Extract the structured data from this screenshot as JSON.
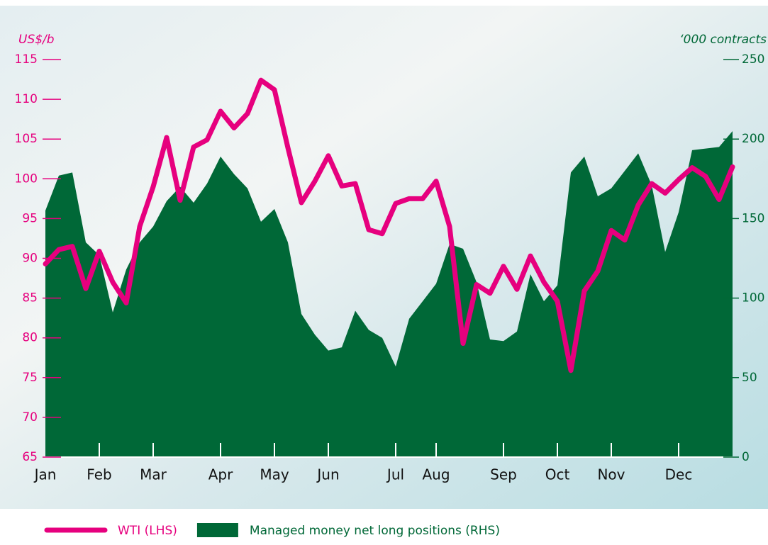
{
  "chart_data": {
    "type": "line",
    "ylabel": "US$/b",
    "y2label": "‘000 contracts",
    "categories": [
      "Jan",
      null,
      null,
      null,
      "Feb",
      null,
      null,
      null,
      "Mar",
      null,
      null,
      null,
      null,
      "Apr",
      null,
      null,
      null,
      "May",
      null,
      null,
      null,
      "Jun",
      null,
      null,
      null,
      null,
      "Jul",
      null,
      null,
      "Aug",
      null,
      null,
      null,
      null,
      "Sep",
      null,
      null,
      null,
      "Oct",
      null,
      null,
      null,
      "Nov",
      null,
      null,
      null,
      null,
      "Dec",
      null,
      null,
      null,
      null
    ],
    "ylim": [
      65,
      115
    ],
    "yticks": [
      65,
      70,
      75,
      80,
      85,
      90,
      95,
      100,
      105,
      110,
      115
    ],
    "y2lim": [
      0,
      250
    ],
    "y2ticks": [
      0,
      50,
      100,
      150,
      200,
      250
    ],
    "series": [
      {
        "name": "Managed money net long positions (RHS)",
        "type": "area",
        "axis": "y2",
        "color": "#006837",
        "values": [
          155,
          177,
          179,
          135,
          127,
          91,
          118,
          135,
          145,
          161,
          170,
          160,
          172,
          189,
          178,
          169,
          148,
          156,
          135,
          90,
          77,
          67,
          69,
          92,
          80,
          75,
          57,
          87,
          98,
          109,
          134,
          131,
          110,
          74,
          73,
          79,
          115,
          98,
          108,
          179,
          189,
          164,
          169,
          180,
          191,
          171,
          129,
          154,
          193,
          194,
          195,
          205
        ]
      },
      {
        "name": "WTI (LHS)",
        "type": "line",
        "color": "#e6007e",
        "values": [
          89.3,
          91.1,
          91.5,
          86.2,
          90.9,
          87.0,
          84.4,
          94.0,
          99.0,
          105.2,
          97.3,
          104.0,
          104.9,
          108.5,
          106.4,
          108.2,
          112.4,
          111.2,
          103.9,
          97.0,
          99.7,
          102.9,
          99.1,
          99.4,
          93.6,
          93.1,
          96.9,
          97.5,
          97.5,
          99.7,
          94.0,
          79.3,
          86.7,
          85.6,
          89.0,
          86.1,
          90.3,
          87.0,
          84.6,
          75.9,
          85.9,
          88.4,
          93.5,
          92.3,
          96.7,
          99.4,
          98.2,
          99.9,
          101.4,
          100.3,
          97.4,
          101.5
        ]
      }
    ]
  }
}
